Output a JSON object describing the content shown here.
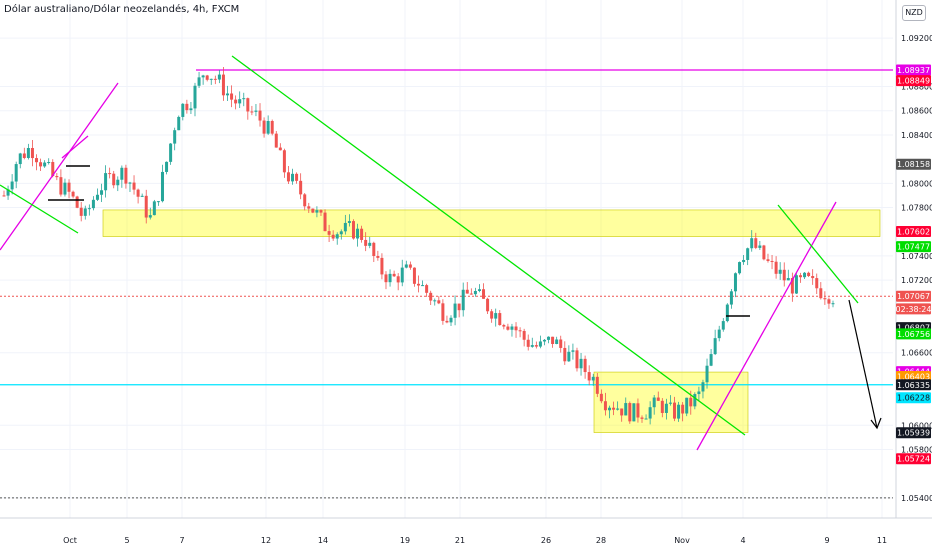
{
  "header": {
    "title": "Dólar australiano/Dólar neozelandés, 4h, FXCM",
    "currency": "NZD"
  },
  "colors": {
    "up": "#26a69a",
    "down": "#ef5350",
    "zone": "#ffff00",
    "trend_green": "#00e600",
    "channel": "#e600e6",
    "cyan": "#00e5ff"
  },
  "chart_data": {
    "type": "candlestick",
    "symbol": "AUDNZD",
    "timeframe": "4h",
    "x_ticks": [
      "Oct",
      "5",
      "7",
      "12",
      "14",
      "19",
      "21",
      "26",
      "28",
      "Nov",
      "4",
      "9",
      "11"
    ],
    "y_ticks": [
      "1.09200",
      "1.08800",
      "1.08600",
      "1.08400",
      "1.08000",
      "1.07800",
      "1.07400",
      "1.07200",
      "1.06600",
      "1.06000",
      "1.05800",
      "1.05400"
    ],
    "ylim": [
      1.053,
      1.0935
    ],
    "price_labels": [
      {
        "text": "1.08937",
        "bg": "#e600e6",
        "fg": "#ffffff",
        "value": 1.08937
      },
      {
        "text": "1.08849",
        "bg": "#ff0033",
        "fg": "#ffffff",
        "value": 1.08849
      },
      {
        "text": "1.08158",
        "bg": "#555555",
        "fg": "#ffffff",
        "value": 1.08158
      },
      {
        "text": "1.07602",
        "bg": "#ff0033",
        "fg": "#ffffff",
        "value": 1.07602
      },
      {
        "text": "1.07477",
        "bg": "#00dd00",
        "fg": "#ffffff",
        "value": 1.07477
      },
      {
        "text": "1.07067",
        "bg": "#ef5350",
        "fg": "#ffffff",
        "value": 1.07067
      },
      {
        "text": "02:38:24",
        "bg": "#ef5350",
        "fg": "#ffffff",
        "value": 1.06962
      },
      {
        "text": "1.06807",
        "bg": "#131722",
        "fg": "#ffffff",
        "value": 1.06807
      },
      {
        "text": "1.06756",
        "bg": "#00dd00",
        "fg": "#ffffff",
        "value": 1.06756
      },
      {
        "text": "1.06444",
        "bg": "#e600e6",
        "fg": "#ffffff",
        "value": 1.06444
      },
      {
        "text": "1.06403",
        "bg": "#ff9800",
        "fg": "#ffffff",
        "value": 1.06403
      },
      {
        "text": "1.06335",
        "bg": "#131722",
        "fg": "#ffffff",
        "value": 1.06335
      },
      {
        "text": "1.06228",
        "bg": "#00e5ff",
        "fg": "#131722",
        "value": 1.06228
      },
      {
        "text": "1.05939",
        "bg": "#131722",
        "fg": "#ffffff",
        "value": 1.05939
      },
      {
        "text": "1.05724",
        "bg": "#ff0033",
        "fg": "#ffffff",
        "value": 1.05724
      }
    ],
    "levels": [
      {
        "value": 1.08937,
        "color": "#e600e6",
        "style": "solid"
      },
      {
        "value": 1.06335,
        "color": "#00e5ff",
        "style": "solid"
      },
      {
        "value": 1.07067,
        "color": "#ef5350",
        "style": "dotted"
      },
      {
        "value": 1.054,
        "color": "#555555",
        "style": "dotted"
      }
    ],
    "zones": [
      {
        "from_value": 1.0778,
        "to_value": 1.0756
      },
      {
        "from_value": 1.0644,
        "to_value": 1.0594
      }
    ],
    "key_prices": [
      1.079,
      1.082,
      1.083,
      1.0815,
      1.08,
      1.079,
      1.077,
      1.0795,
      1.0805,
      1.081,
      1.079,
      1.077,
      1.081,
      1.086,
      1.087,
      1.0894,
      1.0885,
      1.087,
      1.0862,
      1.0855,
      1.084,
      1.081,
      1.0795,
      1.078,
      1.0765,
      1.076,
      1.0762,
      1.0755,
      1.073,
      1.072,
      1.0728,
      1.0718,
      1.0705,
      1.0692,
      1.07,
      1.0712,
      1.07,
      1.069,
      1.0683,
      1.067,
      1.0664,
      1.0671,
      1.066,
      1.065,
      1.064,
      1.062,
      1.0615,
      1.061,
      1.0612,
      1.0618,
      1.061,
      1.0615,
      1.0625,
      1.066,
      1.07,
      1.074,
      1.075,
      1.0735,
      1.0725,
      1.0715,
      1.072,
      1.0712,
      1.0707
    ],
    "series": [
      {
        "name": "AUDNZD",
        "type": "candlestick"
      }
    ]
  }
}
